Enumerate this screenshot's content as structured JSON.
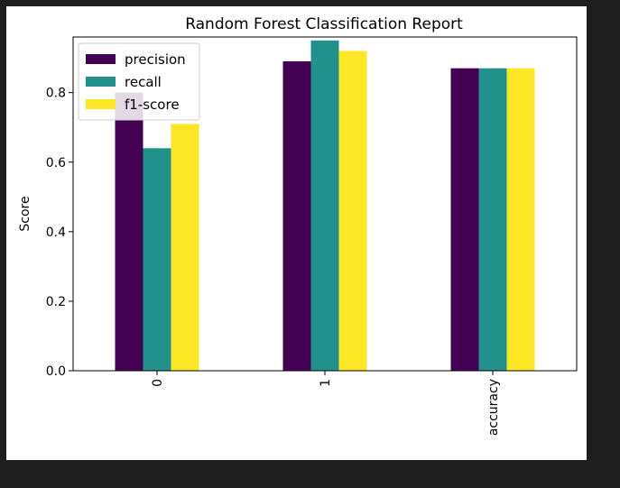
{
  "chart_data": {
    "type": "bar",
    "title": "Random Forest Classification Report",
    "xlabel": "",
    "ylabel": "Score",
    "categories": [
      "0",
      "1",
      "accuracy"
    ],
    "series": [
      {
        "name": "precision",
        "values": [
          0.8,
          0.89,
          0.87
        ],
        "color": "#440154"
      },
      {
        "name": "recall",
        "values": [
          0.64,
          0.95,
          0.87
        ],
        "color": "#21918c"
      },
      {
        "name": "f1-score",
        "values": [
          0.71,
          0.92,
          0.87
        ],
        "color": "#fde725"
      }
    ],
    "ylim": [
      0,
      0.96
    ],
    "yticks": [
      "0.0",
      "0.2",
      "0.4",
      "0.6",
      "0.8"
    ],
    "ytick_values": [
      0.0,
      0.2,
      0.4,
      0.6,
      0.8
    ],
    "grid": false,
    "legend_position": "top-left",
    "xtick_rotation": 90
  }
}
